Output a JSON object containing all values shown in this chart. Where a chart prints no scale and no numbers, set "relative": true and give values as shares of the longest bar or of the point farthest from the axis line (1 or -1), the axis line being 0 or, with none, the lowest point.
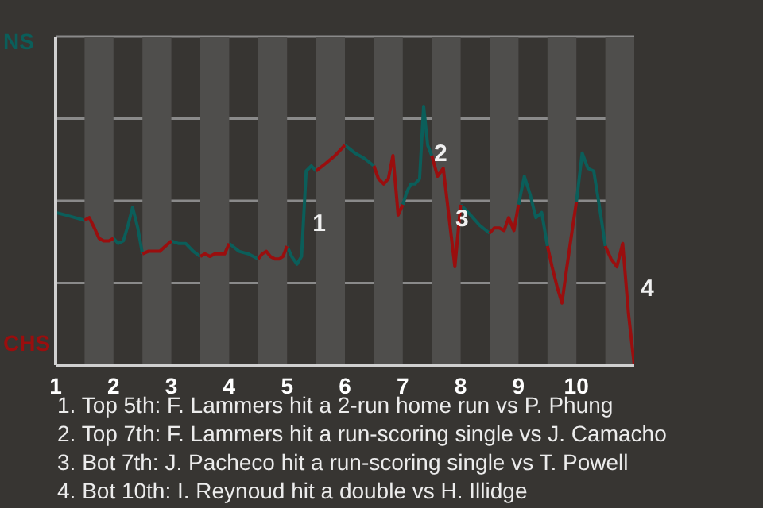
{
  "chart_data": {
    "type": "line",
    "relative": true,
    "x": [
      1,
      1.17,
      1.33,
      1.5,
      1.58,
      1.67,
      1.75,
      1.83,
      1.92,
      2,
      2.08,
      2.17,
      2.25,
      2.33,
      2.42,
      2.5,
      2.6,
      2.7,
      2.8,
      2.9,
      3,
      3.13,
      3.25,
      3.38,
      3.5,
      3.58,
      3.67,
      3.75,
      3.83,
      3.92,
      4,
      4.17,
      4.33,
      4.5,
      4.57,
      4.64,
      4.71,
      4.79,
      4.86,
      4.93,
      5,
      5.08,
      5.17,
      5.25,
      5.33,
      5.42,
      5.5,
      5.67,
      5.83,
      6,
      6.17,
      6.33,
      6.5,
      6.58,
      6.67,
      6.75,
      6.83,
      6.92,
      7,
      7.07,
      7.14,
      7.21,
      7.29,
      7.36,
      7.43,
      7.5,
      7.6,
      7.7,
      7.8,
      7.9,
      8,
      8.17,
      8.33,
      8.5,
      8.58,
      8.67,
      8.75,
      8.83,
      8.92,
      9,
      9.1,
      9.2,
      9.3,
      9.4,
      9.5,
      9.58,
      9.67,
      9.75,
      9.83,
      9.92,
      10,
      10.1,
      10.2,
      10.3,
      10.4,
      10.5,
      10.6,
      10.7,
      10.8,
      10.9,
      11
    ],
    "series": [
      {
        "name": "NS",
        "color": "#0b5e5a",
        "values": [
          0.59,
          0.58,
          0.57,
          0.56,
          null,
          null,
          null,
          null,
          null,
          0.49,
          0.47,
          0.48,
          0.54,
          0.61,
          0.53,
          0.43,
          null,
          null,
          null,
          null,
          0.48,
          0.47,
          0.47,
          0.44,
          0.42,
          null,
          null,
          null,
          null,
          null,
          0.47,
          0.44,
          0.43,
          0.41,
          null,
          null,
          null,
          null,
          null,
          null,
          0.46,
          0.42,
          0.39,
          0.42,
          0.75,
          0.77,
          0.75,
          null,
          null,
          0.85,
          0.82,
          0.8,
          0.77,
          null,
          null,
          null,
          null,
          null,
          0.62,
          0.67,
          0.7,
          0.7,
          0.72,
          1,
          0.85,
          0.81,
          null,
          null,
          null,
          null,
          0.62,
          0.58,
          0.54,
          0.51,
          null,
          null,
          null,
          null,
          null,
          0.62,
          0.73,
          0.66,
          0.57,
          0.59,
          0.46,
          null,
          null,
          null,
          null,
          null,
          0.63,
          0.82,
          0.76,
          0.75,
          0.61,
          0.46,
          null,
          null,
          null,
          null,
          null
        ]
      },
      {
        "name": "CHS",
        "color": "#9a0e0e",
        "values": [
          null,
          null,
          null,
          0.56,
          0.57,
          0.53,
          0.49,
          0.48,
          0.48,
          0.49,
          null,
          null,
          null,
          null,
          null,
          0.43,
          0.44,
          0.44,
          0.44,
          0.46,
          0.48,
          null,
          null,
          null,
          0.42,
          0.43,
          0.42,
          0.43,
          0.43,
          0.43,
          0.47,
          null,
          null,
          0.41,
          0.43,
          0.44,
          0.42,
          0.41,
          0.41,
          0.42,
          0.46,
          null,
          null,
          null,
          null,
          null,
          0.75,
          0.78,
          0.81,
          0.85,
          null,
          null,
          0.77,
          0.72,
          0.7,
          0.72,
          0.81,
          0.58,
          0.62,
          null,
          null,
          null,
          null,
          null,
          null,
          0.81,
          0.73,
          0.76,
          0.57,
          0.38,
          0.62,
          null,
          null,
          0.51,
          0.53,
          0.53,
          0.52,
          0.57,
          0.52,
          0.62,
          null,
          null,
          null,
          null,
          0.46,
          0.38,
          0.3,
          0.24,
          0.37,
          0.51,
          0.63,
          null,
          null,
          null,
          null,
          0.46,
          0.41,
          0.38,
          0.47,
          0.2,
          0
        ]
      }
    ],
    "xlim": [
      1,
      11
    ],
    "xticks": [
      1,
      2,
      3,
      4,
      5,
      6,
      7,
      8,
      9,
      10
    ],
    "grid": "y",
    "legend": "left",
    "bands": [
      {
        "axis": "x",
        "from": 1.5,
        "to": 2,
        "color": "#4f4e4c"
      },
      {
        "axis": "x",
        "from": 2.5,
        "to": 3,
        "color": "#4f4e4c"
      },
      {
        "axis": "x",
        "from": 3.5,
        "to": 4,
        "color": "#4f4e4c"
      },
      {
        "axis": "x",
        "from": 4.5,
        "to": 5,
        "color": "#4f4e4c"
      },
      {
        "axis": "x",
        "from": 5.5,
        "to": 6,
        "color": "#4f4e4c"
      },
      {
        "axis": "x",
        "from": 6.5,
        "to": 7,
        "color": "#4f4e4c"
      },
      {
        "axis": "x",
        "from": 7.5,
        "to": 8,
        "color": "#4f4e4c"
      },
      {
        "axis": "x",
        "from": 8.5,
        "to": 9,
        "color": "#4f4e4c"
      },
      {
        "axis": "x",
        "from": 9.5,
        "to": 10,
        "color": "#4f4e4c"
      },
      {
        "axis": "x",
        "from": 10.5,
        "to": 11,
        "color": "#4f4e4c"
      }
    ],
    "annotations": [
      {
        "text": "1",
        "x": 5.33,
        "y": 0.55
      },
      {
        "text": "2",
        "x": 7.43,
        "y": 0.82
      },
      {
        "text": "3",
        "x": 7.8,
        "y": 0.57
      },
      {
        "text": "4",
        "x": 11,
        "y": 0.3
      },
      "1. Top 5th: F. Lammers hit a 2-run home run vs P. Phung",
      "2. Top 7th: F. Lammers hit a run-scoring single vs J. Camacho",
      "3. Bot 7th: J. Pacheco hit a run-scoring single vs T. Powell",
      "4. Bot 10th: I. Reynoud hit a double vs H. Illidge"
    ]
  }
}
